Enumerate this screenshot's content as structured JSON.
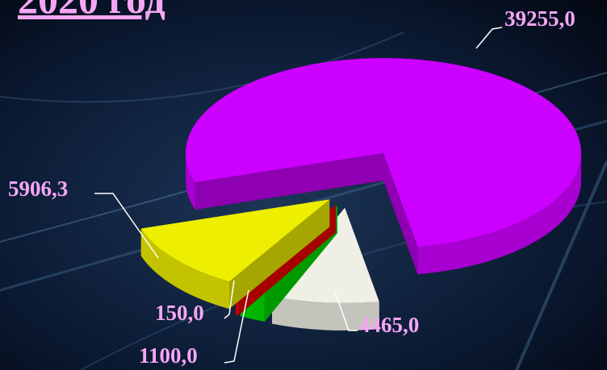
{
  "chart_data": {
    "type": "pie",
    "title": "2020 год",
    "values": [
      39255.0,
      4465.0,
      1100.0,
      150.0,
      5906.3
    ],
    "value_labels": [
      "39255,0",
      "4465,0",
      "1100,0",
      "150,0",
      "5906,3"
    ],
    "colors": [
      "#cc00ff",
      "#f0efe6",
      "#00dd00",
      "#ee0000",
      "#eeee00"
    ]
  }
}
